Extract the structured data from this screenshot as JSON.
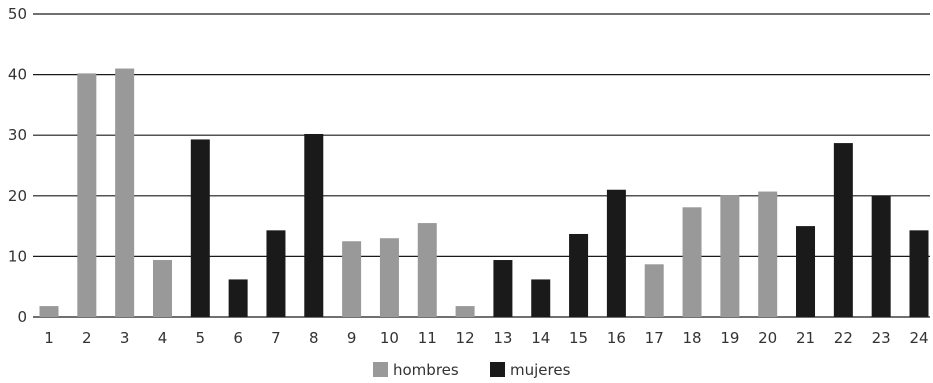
{
  "chart_data": {
    "type": "bar",
    "categories": [
      "1",
      "2",
      "3",
      "4",
      "5",
      "6",
      "7",
      "8",
      "9",
      "10",
      "11",
      "12",
      "13",
      "14",
      "15",
      "16",
      "17",
      "18",
      "19",
      "20",
      "21",
      "22",
      "23",
      "24"
    ],
    "values": [
      1.8,
      40.2,
      41.0,
      9.4,
      29.3,
      6.2,
      14.3,
      30.2,
      12.5,
      13.0,
      15.5,
      1.8,
      9.4,
      6.2,
      13.7,
      21.0,
      8.7,
      18.1,
      20.1,
      20.7,
      15.0,
      28.7,
      20.0,
      14.3
    ],
    "series_of_bar": [
      "hombres",
      "hombres",
      "hombres",
      "hombres",
      "mujeres",
      "mujeres",
      "mujeres",
      "mujeres",
      "hombres",
      "hombres",
      "hombres",
      "hombres",
      "mujeres",
      "mujeres",
      "mujeres",
      "mujeres",
      "hombres",
      "hombres",
      "hombres",
      "hombres",
      "mujeres",
      "mujeres",
      "mujeres",
      "mujeres"
    ],
    "series": [
      {
        "name": "hombres",
        "color": "#999999"
      },
      {
        "name": "mujeres",
        "color": "#1a1a1a"
      }
    ],
    "yticks": [
      "0",
      "10",
      "20",
      "30",
      "40",
      "50"
    ],
    "ylim": [
      0,
      50
    ],
    "grid": true,
    "legend_position": "bottom-center"
  }
}
